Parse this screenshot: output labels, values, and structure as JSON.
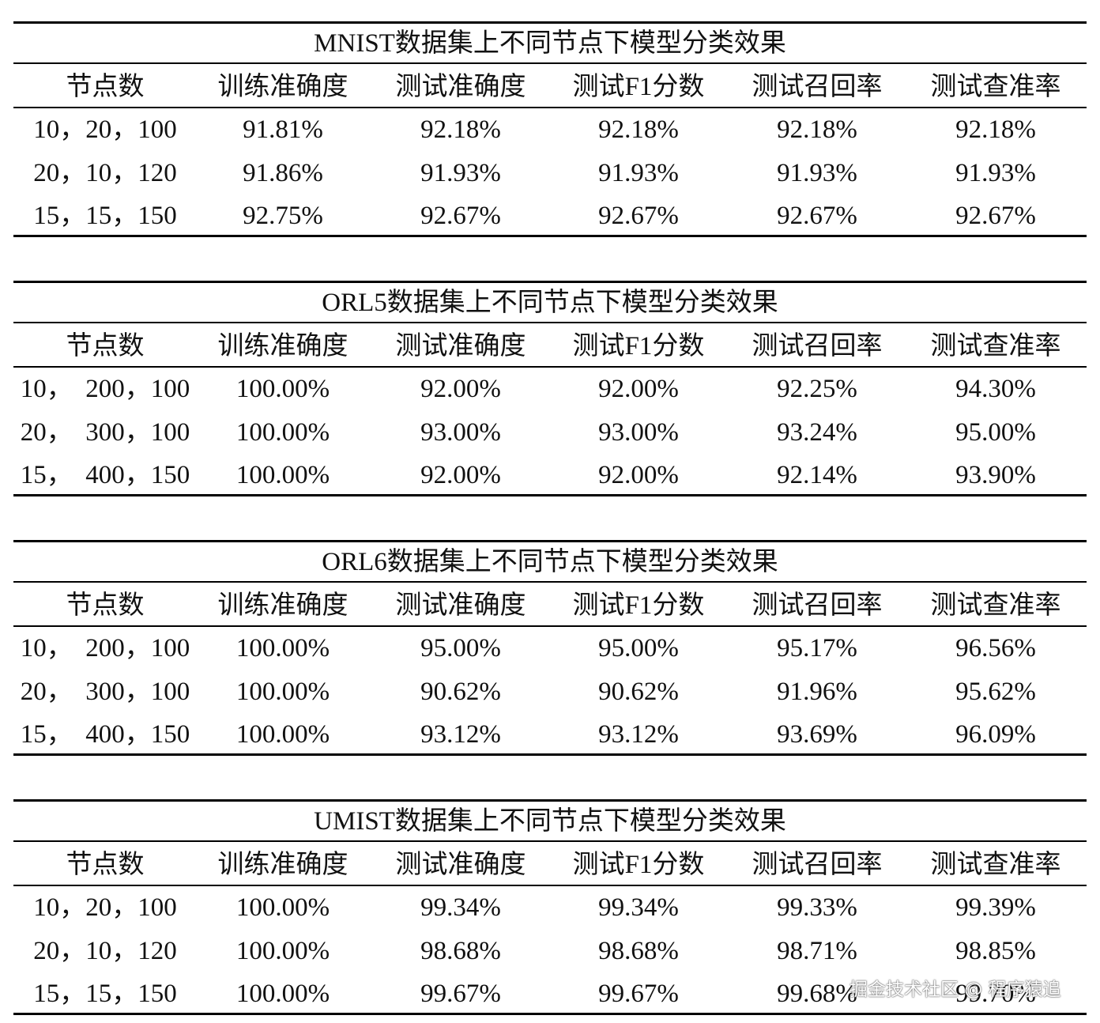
{
  "tables": [
    {
      "title": "MNIST数据集上不同节点下模型分类效果",
      "headers": [
        "节点数",
        "训练准确度",
        "测试准确度",
        "测试F1分数",
        "测试召回率",
        "测试查准率"
      ],
      "rows": [
        [
          "10，20，100",
          "91.81%",
          "92.18%",
          "92.18%",
          "92.18%",
          "92.18%"
        ],
        [
          "20，10，120",
          "91.86%",
          "91.93%",
          "91.93%",
          "91.93%",
          "91.93%"
        ],
        [
          "15，15，150",
          "92.75%",
          "92.67%",
          "92.67%",
          "92.67%",
          "92.67%"
        ]
      ]
    },
    {
      "title": "ORL5数据集上不同节点下模型分类效果",
      "headers": [
        "节点数",
        "训练准确度",
        "测试准确度",
        "测试F1分数",
        "测试召回率",
        "测试查准率"
      ],
      "rows": [
        [
          "10，  200，100",
          "100.00%",
          "92.00%",
          "92.00%",
          "92.25%",
          "94.30%"
        ],
        [
          "20，  300，100",
          "100.00%",
          "93.00%",
          "93.00%",
          "93.24%",
          "95.00%"
        ],
        [
          "15，  400，150",
          "100.00%",
          "92.00%",
          "92.00%",
          "92.14%",
          "93.90%"
        ]
      ]
    },
    {
      "title": "ORL6数据集上不同节点下模型分类效果",
      "headers": [
        "节点数",
        "训练准确度",
        "测试准确度",
        "测试F1分数",
        "测试召回率",
        "测试查准率"
      ],
      "rows": [
        [
          "10，  200，100",
          "100.00%",
          "95.00%",
          "95.00%",
          "95.17%",
          "96.56%"
        ],
        [
          "20，  300，100",
          "100.00%",
          "90.62%",
          "90.62%",
          "91.96%",
          "95.62%"
        ],
        [
          "15，  400，150",
          "100.00%",
          "93.12%",
          "93.12%",
          "93.69%",
          "96.09%"
        ]
      ]
    },
    {
      "title": "UMIST数据集上不同节点下模型分类效果",
      "headers": [
        "节点数",
        "训练准确度",
        "测试准确度",
        "测试F1分数",
        "测试召回率",
        "测试查准率"
      ],
      "rows": [
        [
          "10，20，100",
          "100.00%",
          "99.34%",
          "99.34%",
          "99.33%",
          "99.39%"
        ],
        [
          "20，10，120",
          "100.00%",
          "98.68%",
          "98.68%",
          "98.71%",
          "98.85%"
        ],
        [
          "15，15，150",
          "100.00%",
          "99.67%",
          "99.67%",
          "99.68%",
          "99.70%"
        ]
      ]
    }
  ],
  "watermark": "掘金技术社区 @ 程序猿追"
}
